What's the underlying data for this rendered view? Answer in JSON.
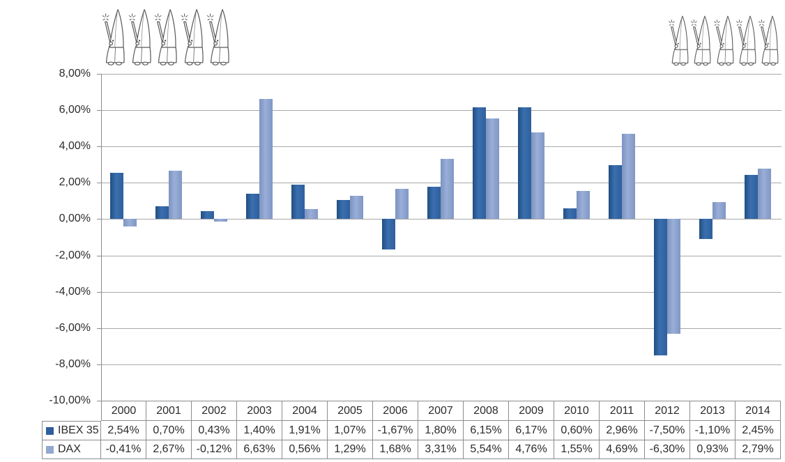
{
  "chart_data": {
    "type": "bar",
    "title": "",
    "xlabel": "",
    "ylabel": "",
    "categories": [
      "2000",
      "2001",
      "2002",
      "2003",
      "2004",
      "2005",
      "2006",
      "2007",
      "2008",
      "2009",
      "2010",
      "2011",
      "2012",
      "2013",
      "2014"
    ],
    "series": [
      {
        "name": "IBEX 35",
        "values": [
          2.54,
          0.7,
          0.43,
          1.4,
          1.91,
          1.07,
          -1.67,
          1.8,
          6.15,
          6.17,
          0.6,
          2.96,
          -7.5,
          -1.1,
          2.45
        ],
        "color_edge": "#214f80",
        "color_mid": "#3a6fb0",
        "color_end": "#2f5f9c",
        "legend_color": "#2e5e9e"
      },
      {
        "name": "DAX",
        "values": [
          -0.41,
          2.67,
          -0.12,
          6.63,
          0.56,
          1.29,
          1.68,
          3.31,
          5.54,
          4.76,
          1.55,
          4.69,
          -6.3,
          0.93,
          2.79
        ],
        "color_edge": "#7d93c0",
        "color_mid": "#99afd9",
        "color_end": "#8096c4",
        "legend_color": "#92a7d1"
      }
    ],
    "ylim": [
      -10,
      8
    ],
    "ytick_step": 2,
    "ytick_labels": [
      "8,00%",
      "6,00%",
      "4,00%",
      "2,00%",
      "0,00%",
      "-2,00%",
      "-4,00%",
      "-6,00%",
      "-8,00%",
      "-10,00%"
    ],
    "grid": true,
    "legend_position": "data-table-left",
    "value_format": "percent-comma-decimal",
    "gridline_color": "#a8a8a8",
    "axis_color": "#8c8c8c"
  },
  "table": {
    "rows": [
      {
        "label": "IBEX 35",
        "cells": [
          "2,54%",
          "0,70%",
          "0,43%",
          "1,40%",
          "1,91%",
          "1,07%",
          "-1,67%",
          "1,80%",
          "6,15%",
          "6,17%",
          "0,60%",
          "2,96%",
          "-7,50%",
          "-1,10%",
          "2,45%"
        ]
      },
      {
        "label": "DAX",
        "cells": [
          "-0,41%",
          "2,67%",
          "-0,12%",
          "6,63%",
          "0,56%",
          "1,29%",
          "1,68%",
          "3,31%",
          "5,54%",
          "4,76%",
          "1,55%",
          "4,69%",
          "-6,30%",
          "0,93%",
          "2,79%"
        ]
      }
    ]
  },
  "decor": {
    "figure": "nazareno-penitent-with-candle",
    "left_count": 5,
    "right_count": 5
  }
}
